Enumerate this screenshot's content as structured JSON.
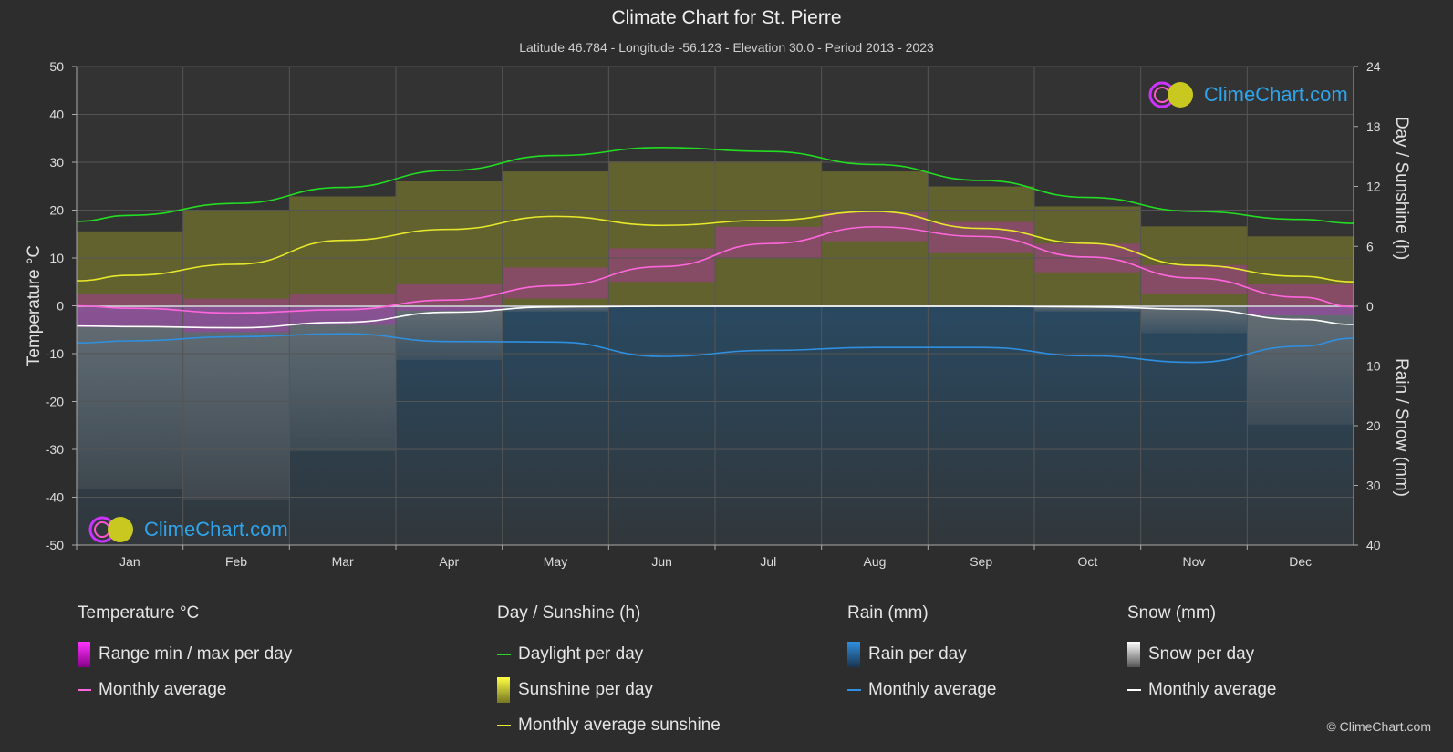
{
  "title": "Climate Chart for St. Pierre",
  "subtitle": "Latitude 46.784 - Longitude -56.123 - Elevation 30.0 - Period 2013 - 2023",
  "logo_text": "ClimeChart.com",
  "copyright": "© ClimeChart.com",
  "colors": {
    "background": "#2d2d2d",
    "daylight": "#22dd22",
    "sunshine_avg": "#e8e82a",
    "sunshine_fill": "#9c9c2a",
    "temp_avg": "#ff66dd",
    "temp_range": "#cc22cc",
    "rain_avg": "#2f8fe0",
    "rain_fill": "#1f5f8f",
    "snow_avg": "#ffffff",
    "snow_fill": "#7a7a7a"
  },
  "legend": {
    "temperature": {
      "title": "Temperature °C",
      "range": "Range min / max per day",
      "avg": "Monthly average"
    },
    "sunshine": {
      "title": "Day / Sunshine (h)",
      "daylight": "Daylight per day",
      "sunshine": "Sunshine per day",
      "avg": "Monthly average sunshine"
    },
    "rain": {
      "title": "Rain (mm)",
      "per_day": "Rain per day",
      "avg": "Monthly average"
    },
    "snow": {
      "title": "Snow (mm)",
      "per_day": "Snow per day",
      "avg": "Monthly average"
    }
  },
  "chart_data": {
    "type": "line",
    "categories": [
      "Jan",
      "Feb",
      "Mar",
      "Apr",
      "May",
      "Jun",
      "Jul",
      "Aug",
      "Sep",
      "Oct",
      "Nov",
      "Dec"
    ],
    "axes": {
      "left": {
        "label": "Temperature °C",
        "range": [
          -50,
          50
        ],
        "ticks": [
          50,
          40,
          30,
          20,
          10,
          0,
          -10,
          -20,
          -30,
          -40,
          -50
        ]
      },
      "right_top": {
        "label": "Day / Sunshine (h)",
        "range": [
          0,
          24
        ],
        "ticks": [
          24,
          18,
          12,
          6,
          0
        ]
      },
      "right_bottom": {
        "label": "Rain / Snow (mm)",
        "range": [
          0,
          40
        ],
        "ticks": [
          10,
          20,
          30,
          40
        ]
      }
    },
    "grid": true,
    "series": [
      {
        "name": "Daylight per day",
        "axis": "hours",
        "values": [
          9.1,
          10.3,
          11.9,
          13.6,
          15.1,
          15.9,
          15.5,
          14.2,
          12.6,
          10.9,
          9.5,
          8.7
        ]
      },
      {
        "name": "Monthly average sunshine",
        "axis": "hours",
        "values": [
          3.1,
          4.2,
          6.6,
          7.7,
          9.0,
          8.1,
          8.6,
          9.5,
          7.8,
          6.3,
          4.1,
          3.0
        ]
      },
      {
        "name": "Sunshine per day",
        "axis": "hours",
        "values": [
          7.5,
          9.5,
          11.0,
          12.5,
          13.5,
          14.5,
          14.5,
          13.5,
          12.0,
          10.0,
          8.0,
          7.0
        ]
      },
      {
        "name": "Monthly average",
        "group": "temperature",
        "axis": "temp",
        "values": [
          -0.5,
          -1.5,
          -0.8,
          1.2,
          4.2,
          8.2,
          13.0,
          16.5,
          14.5,
          10.2,
          5.8,
          1.8
        ]
      },
      {
        "name": "Range min / max per day",
        "axis": "temp",
        "min": [
          -4.5,
          -5.5,
          -4.0,
          -1.0,
          1.5,
          5.0,
          10.0,
          13.5,
          11.0,
          7.0,
          2.5,
          -2.0
        ],
        "max": [
          2.5,
          1.5,
          2.5,
          4.5,
          8.0,
          12.0,
          16.5,
          19.5,
          17.5,
          13.0,
          8.5,
          4.5
        ]
      },
      {
        "name": "Monthly average",
        "group": "rain",
        "axis": "mm",
        "values": [
          5.8,
          5.1,
          4.6,
          5.9,
          6.0,
          8.4,
          7.4,
          6.9,
          6.9,
          8.3,
          9.4,
          6.7
        ]
      },
      {
        "name": "Monthly average",
        "group": "snow",
        "axis": "mm",
        "values": [
          3.4,
          3.6,
          2.7,
          1.0,
          0.1,
          0.0,
          0.0,
          0.0,
          0.0,
          0.1,
          0.5,
          2.2
        ]
      }
    ]
  }
}
